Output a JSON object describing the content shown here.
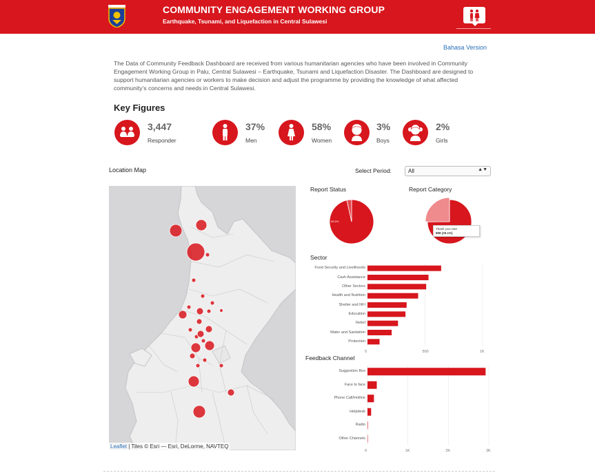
{
  "header": {
    "title": "COMMUNITY ENGAGEMENT WORKING GROUP",
    "subtitle": "Earthquake, Tsunami, and Liquefaction in Central Sulawesi",
    "bg_color": "#d7161d",
    "logo_icon": "provincial-emblem-icon",
    "right_icon": "family-speech-bubble-icon"
  },
  "bahasa_link": "Bahasa Version",
  "description": "The Data of Community Feedback Dashboard are received from various humanitarian agencies who have been involved in Community Engagement Working Group in Palu, Central Sulawesi – Earthquake, Tsunami and Liquefaction Disaster. The Dashboard are designed to support humanitarian agencies or workers to make decision and adjust the programme by providing the knowledge of what affected community’s concerns and needs in Central Sulawesi.",
  "key_figures": {
    "title": "Key Figures",
    "items": [
      {
        "value": "3,447",
        "label": "Responder",
        "icon": "group-icon"
      },
      {
        "value": "37%",
        "label": "Men",
        "icon": "man-icon"
      },
      {
        "value": "58%",
        "label": "Women",
        "icon": "woman-icon"
      },
      {
        "value": "3%",
        "label": "Boys",
        "icon": "boy-icon"
      },
      {
        "value": "2%",
        "label": "Girls",
        "icon": "girl-icon"
      }
    ]
  },
  "location_map": {
    "title": "Location Map",
    "attribution_link": "Leaflet",
    "attribution_text": " | Tiles © Esri — Esri, DeLorme, NAVTEQ"
  },
  "period": {
    "label": "Select Period:",
    "selected": "All"
  },
  "chart_data": [
    {
      "type": "pie",
      "title": "Report Status",
      "slices": [
        {
          "value": 96.5,
          "label": "96.5%",
          "color": "#d7161d"
        },
        {
          "value": 3.5,
          "color": "#e24a4f"
        }
      ]
    },
    {
      "type": "pie",
      "title": "Report Category",
      "slices": [
        {
          "value": 74.9,
          "color": "#d7161d"
        },
        {
          "value": 25.1,
          "label": "Thank you note",
          "value_text": "898 (25.1%)",
          "color": "#ef8a8d"
        }
      ],
      "tooltip": {
        "name": "Thank you note",
        "value": "898 (25.1%)"
      }
    },
    {
      "type": "bar",
      "orientation": "horizontal",
      "title": "Sector",
      "categories": [
        "Food Security and Livelihoods",
        "Cash Assistance",
        "Other Sectors",
        "Health and Nutrition",
        "Shelter and NFI",
        "Education",
        "Relief",
        "Water and Sanitation",
        "Protection"
      ],
      "values": [
        640,
        530,
        510,
        440,
        340,
        330,
        265,
        210,
        105
      ],
      "xticks": [
        "0",
        "500",
        "1K"
      ],
      "xlim": [
        0,
        1000
      ],
      "color": "#d7161d"
    },
    {
      "type": "bar",
      "orientation": "horizontal",
      "title": "Feedback Channel",
      "categories": [
        "Suggestion Box",
        "Face to face",
        "Phone Call/Hotline",
        "Helpdesk",
        "Radio",
        "Other Channels"
      ],
      "values": [
        2920,
        230,
        160,
        90,
        10,
        5
      ],
      "xticks": [
        "0",
        "1K",
        "2K",
        "3K"
      ],
      "xlim": [
        0,
        3000
      ],
      "color": "#d7161d"
    }
  ]
}
